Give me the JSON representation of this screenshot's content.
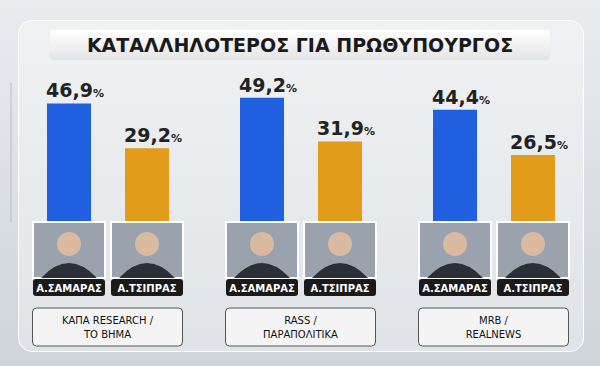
{
  "chart_data": {
    "type": "bar",
    "title": "ΚΑΤΑΛΛΗΛΟΤΕΡΟΣ ΓΙΑ ΠΡΩΘΥΠΟΥΡΓΟΣ",
    "categories": [
      "ΚΑΠΑ RESEARCH / ΤΟ ΒΗΜΑ",
      "RASS / ΠΑΡΑΠΟΛΙΤΙΚΑ",
      "MRB / REALNEWS"
    ],
    "series": [
      {
        "name": "Α.ΣΑΜΑΡΑΣ",
        "color": "#1f5fe0",
        "values": [
          46.9,
          49.2,
          44.4
        ],
        "value_labels": [
          "46,9%",
          "49,2%",
          "44,4%"
        ]
      },
      {
        "name": "Α.ΤΣΙΠΡΑΣ",
        "color": "#e39c1a",
        "values": [
          29.2,
          31.9,
          26.5
        ],
        "value_labels": [
          "29,2%",
          "31,9%",
          "26,5%"
        ]
      }
    ],
    "ylim": [
      0,
      55
    ],
    "data_labels": true,
    "tick_labels": "x",
    "grid": false
  }
}
